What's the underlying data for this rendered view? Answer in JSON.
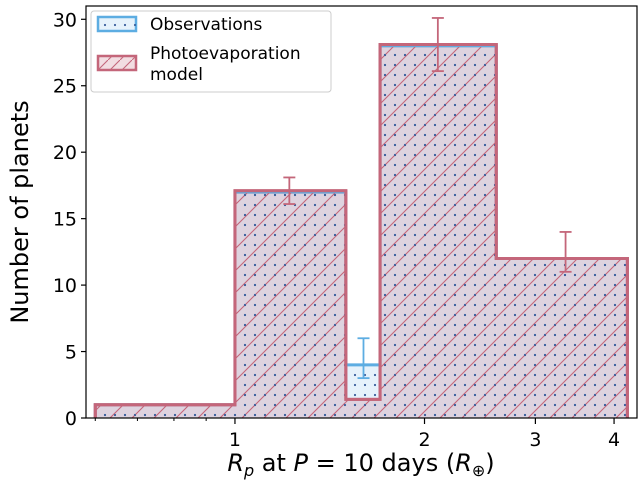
{
  "chart_data": {
    "type": "bar",
    "x_scale": "log",
    "xlabel_parts": {
      "r": "R",
      "p": "p",
      "at": " at ",
      "P": "P",
      "eq": " = 10 days (",
      "r2": "R",
      "sub": "⊕",
      "close": ")"
    },
    "ylabel": "Number of planets",
    "xlim": [
      0.58,
      4.35
    ],
    "ylim": [
      0,
      31
    ],
    "x_ticks": [
      {
        "value": 1,
        "label": "1"
      },
      {
        "value": 2,
        "label": "2"
      },
      {
        "value": 3,
        "label": "3"
      },
      {
        "value": 4,
        "label": "4"
      }
    ],
    "y_ticks": [
      {
        "value": 0,
        "label": "0"
      },
      {
        "value": 5,
        "label": "5"
      },
      {
        "value": 10,
        "label": "10"
      },
      {
        "value": 15,
        "label": "15"
      },
      {
        "value": 20,
        "label": "20"
      },
      {
        "value": 25,
        "label": "25"
      },
      {
        "value": 30,
        "label": "30"
      }
    ],
    "legend": {
      "placement": "top-left",
      "entries": [
        "Observations",
        "Photoevaporation",
        "model"
      ]
    },
    "series": [
      {
        "name": "Observations",
        "bins": [
          {
            "x0": 0.6,
            "x1": 1.0,
            "value": 1
          },
          {
            "x0": 1.0,
            "x1": 1.5,
            "value": 17
          },
          {
            "x0": 1.5,
            "x1": 1.7,
            "value": 4
          },
          {
            "x0": 1.7,
            "x1": 2.6,
            "value": 28
          },
          {
            "x0": 2.6,
            "x1": 4.2,
            "value": 12
          }
        ],
        "errorbars": [
          {
            "x": 1.6,
            "low": 3,
            "high": 6
          }
        ],
        "color": "#5dade2",
        "fill": "#e6f2fb"
      },
      {
        "name": "Photoevaporation model",
        "bins": [
          {
            "x0": 0.6,
            "x1": 1.0,
            "value": 1
          },
          {
            "x0": 1.0,
            "x1": 1.5,
            "value": 17.1
          },
          {
            "x0": 1.5,
            "x1": 1.7,
            "value": 1.4
          },
          {
            "x0": 1.7,
            "x1": 2.6,
            "value": 28.1
          },
          {
            "x0": 2.6,
            "x1": 4.2,
            "value": 12
          }
        ],
        "errorbars": [
          {
            "x": 1.22,
            "low": 16.1,
            "high": 18.1
          },
          {
            "x": 2.1,
            "low": 26.1,
            "high": 30.1
          },
          {
            "x": 3.35,
            "low": 11,
            "high": 14
          }
        ],
        "color": "#c4667a",
        "fill": "rgba(196,102,122,0.22)"
      }
    ]
  }
}
